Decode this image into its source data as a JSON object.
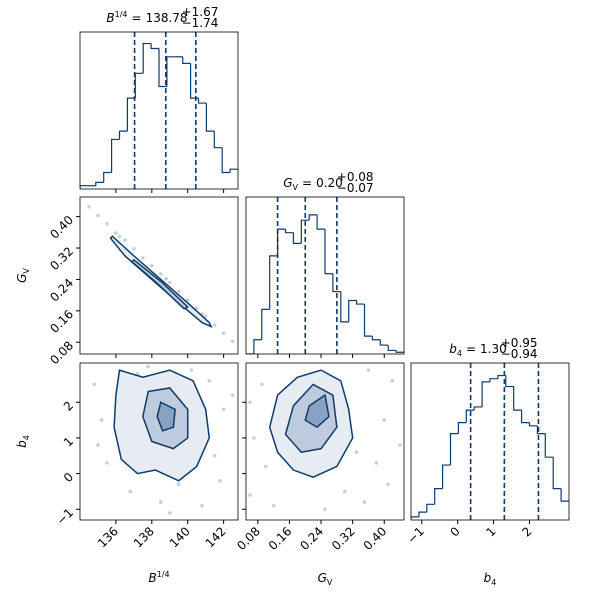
{
  "chart_data": {
    "type": "corner",
    "color": "#0e3b6b",
    "point_color": "#b8c4d4",
    "contour_fills": [
      "#e3e9f1",
      "#b6c6da",
      "#7f9bbf"
    ],
    "parameters": [
      {
        "label": {
          "base": "B",
          "sup": "1/4"
        },
        "title": {
          "relation": "=",
          "value": "138.78",
          "upper": "+1.67",
          "lower": "−1.74"
        },
        "lim": [
          134,
          142.8
        ],
        "ticks": [
          136,
          138,
          140,
          142
        ],
        "quantiles": [
          137.04,
          138.78,
          140.45
        ],
        "histogram": {
          "bins": [
            134.0,
            134.44,
            134.88,
            135.32,
            135.76,
            136.2,
            136.64,
            137.08,
            137.52,
            137.96,
            138.4,
            138.84,
            139.28,
            139.72,
            140.16,
            140.6,
            141.04,
            141.48,
            141.92,
            142.36,
            142.8
          ],
          "counts": [
            2,
            2,
            4,
            10,
            30,
            35,
            55,
            70,
            88,
            85,
            62,
            80,
            80,
            76,
            55,
            52,
            35,
            25,
            10,
            12
          ],
          "ylim": [
            0,
            95
          ]
        }
      },
      {
        "label": {
          "base": "G",
          "sub": "V"
        },
        "title": {
          "relation": "=",
          "value": "0.20",
          "upper": "+0.08",
          "lower": "−0.07"
        },
        "lim": [
          0.05,
          0.45
        ],
        "ticks": [
          0.08,
          0.16,
          0.24,
          0.32,
          {
            "value": 0.4,
            "label": "0.40"
          }
        ],
        "quantiles": [
          0.13,
          0.2,
          0.28
        ],
        "histogram": {
          "bins": [
            0.05,
            0.07,
            0.09,
            0.11,
            0.13,
            0.15,
            0.17,
            0.19,
            0.21,
            0.23,
            0.25,
            0.27,
            0.29,
            0.31,
            0.33,
            0.35,
            0.37,
            0.39,
            0.41,
            0.43,
            0.45
          ],
          "counts": [
            0,
            8,
            25,
            55,
            70,
            68,
            62,
            75,
            78,
            70,
            45,
            35,
            18,
            30,
            28,
            10,
            8,
            5,
            2,
            1
          ],
          "ylim": [
            0,
            88
          ]
        }
      },
      {
        "label": {
          "base": "b",
          "sub": "4"
        },
        "title": {
          "relation": "=",
          "value": "1.30",
          "upper": "+0.95",
          "lower": "−0.94"
        },
        "lim": [
          -1.3,
          3.1
        ],
        "ticks": [
          {
            "value": -1,
            "label": "−1"
          },
          0,
          1,
          2
        ],
        "quantiles": [
          0.36,
          1.3,
          2.25
        ],
        "histogram": {
          "bins": [
            -1.3,
            -1.08,
            -0.86,
            -0.64,
            -0.42,
            -0.2,
            0.02,
            0.24,
            0.46,
            0.68,
            0.9,
            1.12,
            1.34,
            1.56,
            1.78,
            2.0,
            2.22,
            2.44,
            2.66,
            2.88,
            3.1
          ],
          "counts": [
            2,
            5,
            10,
            20,
            35,
            55,
            62,
            70,
            72,
            88,
            90,
            92,
            85,
            70,
            62,
            60,
            55,
            40,
            20,
            12
          ],
          "ylim": [
            0,
            100
          ]
        }
      }
    ],
    "pairs": [
      {
        "x": [
          135.0,
          135.5,
          136.0,
          136.5,
          137.0,
          137.5,
          138.0,
          138.5,
          139.0,
          139.5,
          140.0,
          140.5,
          141.0,
          141.5,
          142.0,
          142.5,
          134.5,
          136.2,
          138.8,
          140.8
        ],
        "y": [
          0.403,
          0.382,
          0.358,
          0.34,
          0.318,
          0.295,
          0.275,
          0.254,
          0.232,
          0.21,
          0.188,
          0.167,
          0.146,
          0.124,
          0.103,
          0.082,
          0.425,
          0.35,
          0.242,
          0.152
        ],
        "contours": [
          {
            "x": [
              135.8,
              137.0,
              138.5,
              140.0,
              141.2,
              141.3,
              140.8,
              139.5,
              138.0,
              136.5,
              135.7
            ],
            "y": [
              0.35,
              0.3,
              0.24,
              0.18,
              0.13,
              0.12,
              0.13,
              0.18,
              0.24,
              0.3,
              0.345
            ]
          },
          {
            "x": [
              137.0,
              138.5,
              140.0,
              139.8,
              138.3,
              136.9
            ],
            "y": [
              0.29,
              0.235,
              0.17,
              0.165,
              0.23,
              0.285
            ]
          }
        ]
      },
      {
        "x": [
          135.2,
          135.5,
          134.8,
          136.8,
          137.2,
          138.5,
          139.5,
          140.2,
          141.5,
          142.0,
          141.8,
          136.0,
          140.8,
          142.5,
          135.0,
          139.0,
          137.8,
          141.2
        ],
        "y": [
          1.5,
          0.3,
          2.5,
          -0.5,
          2.8,
          -0.8,
          -0.3,
          2.9,
          0.5,
          1.8,
          -0.2,
          1.2,
          -0.9,
          2.2,
          0.8,
          -1.1,
          3.0,
          2.6
        ],
        "contours": [
          {
            "x": [
              136.2,
              137.5,
              139.0,
              140.3,
              141.0,
              141.2,
              140.5,
              139.5,
              138.2,
              137.2,
              136.3,
              135.9,
              136.0
            ],
            "y": [
              2.9,
              2.7,
              2.9,
              2.6,
              1.8,
              1.0,
              0.2,
              -0.2,
              0.1,
              0.0,
              0.4,
              1.3,
              2.2
            ]
          },
          {
            "x": [
              137.8,
              139.0,
              140.0,
              140.0,
              139.2,
              138.0,
              137.5
            ],
            "y": [
              2.3,
              2.4,
              1.8,
              1.0,
              0.7,
              0.9,
              1.6
            ]
          },
          {
            "x": [
              138.5,
              139.3,
              139.2,
              138.6,
              138.3
            ],
            "y": [
              2.0,
              1.8,
              1.3,
              1.2,
              1.6
            ]
          }
        ]
      },
      {
        "x": [
          0.06,
          0.07,
          0.09,
          0.38,
          0.4,
          0.42,
          0.35,
          0.3,
          0.12,
          0.1,
          0.36,
          0.33,
          0.41,
          0.06,
          0.25,
          0.44
        ],
        "y": [
          -0.6,
          1.0,
          2.5,
          0.3,
          1.5,
          2.6,
          -0.8,
          -0.5,
          -0.9,
          0.2,
          2.9,
          0.6,
          -0.3,
          2.0,
          -1.0,
          0.8
        ],
        "contours": [
          {
            "x": [
              0.13,
              0.18,
              0.24,
              0.29,
              0.31,
              0.32,
              0.28,
              0.22,
              0.17,
              0.13,
              0.11
            ],
            "y": [
              2.2,
              2.7,
              2.9,
              2.6,
              1.8,
              1.0,
              0.2,
              -0.1,
              0.1,
              0.6,
              1.3
            ]
          },
          {
            "x": [
              0.17,
              0.22,
              0.27,
              0.28,
              0.24,
              0.19,
              0.15
            ],
            "y": [
              1.9,
              2.5,
              2.2,
              1.3,
              0.7,
              0.6,
              1.1
            ]
          },
          {
            "x": [
              0.21,
              0.25,
              0.26,
              0.23,
              0.2
            ],
            "y": [
              1.9,
              2.2,
              1.6,
              1.3,
              1.5
            ]
          }
        ]
      }
    ]
  }
}
